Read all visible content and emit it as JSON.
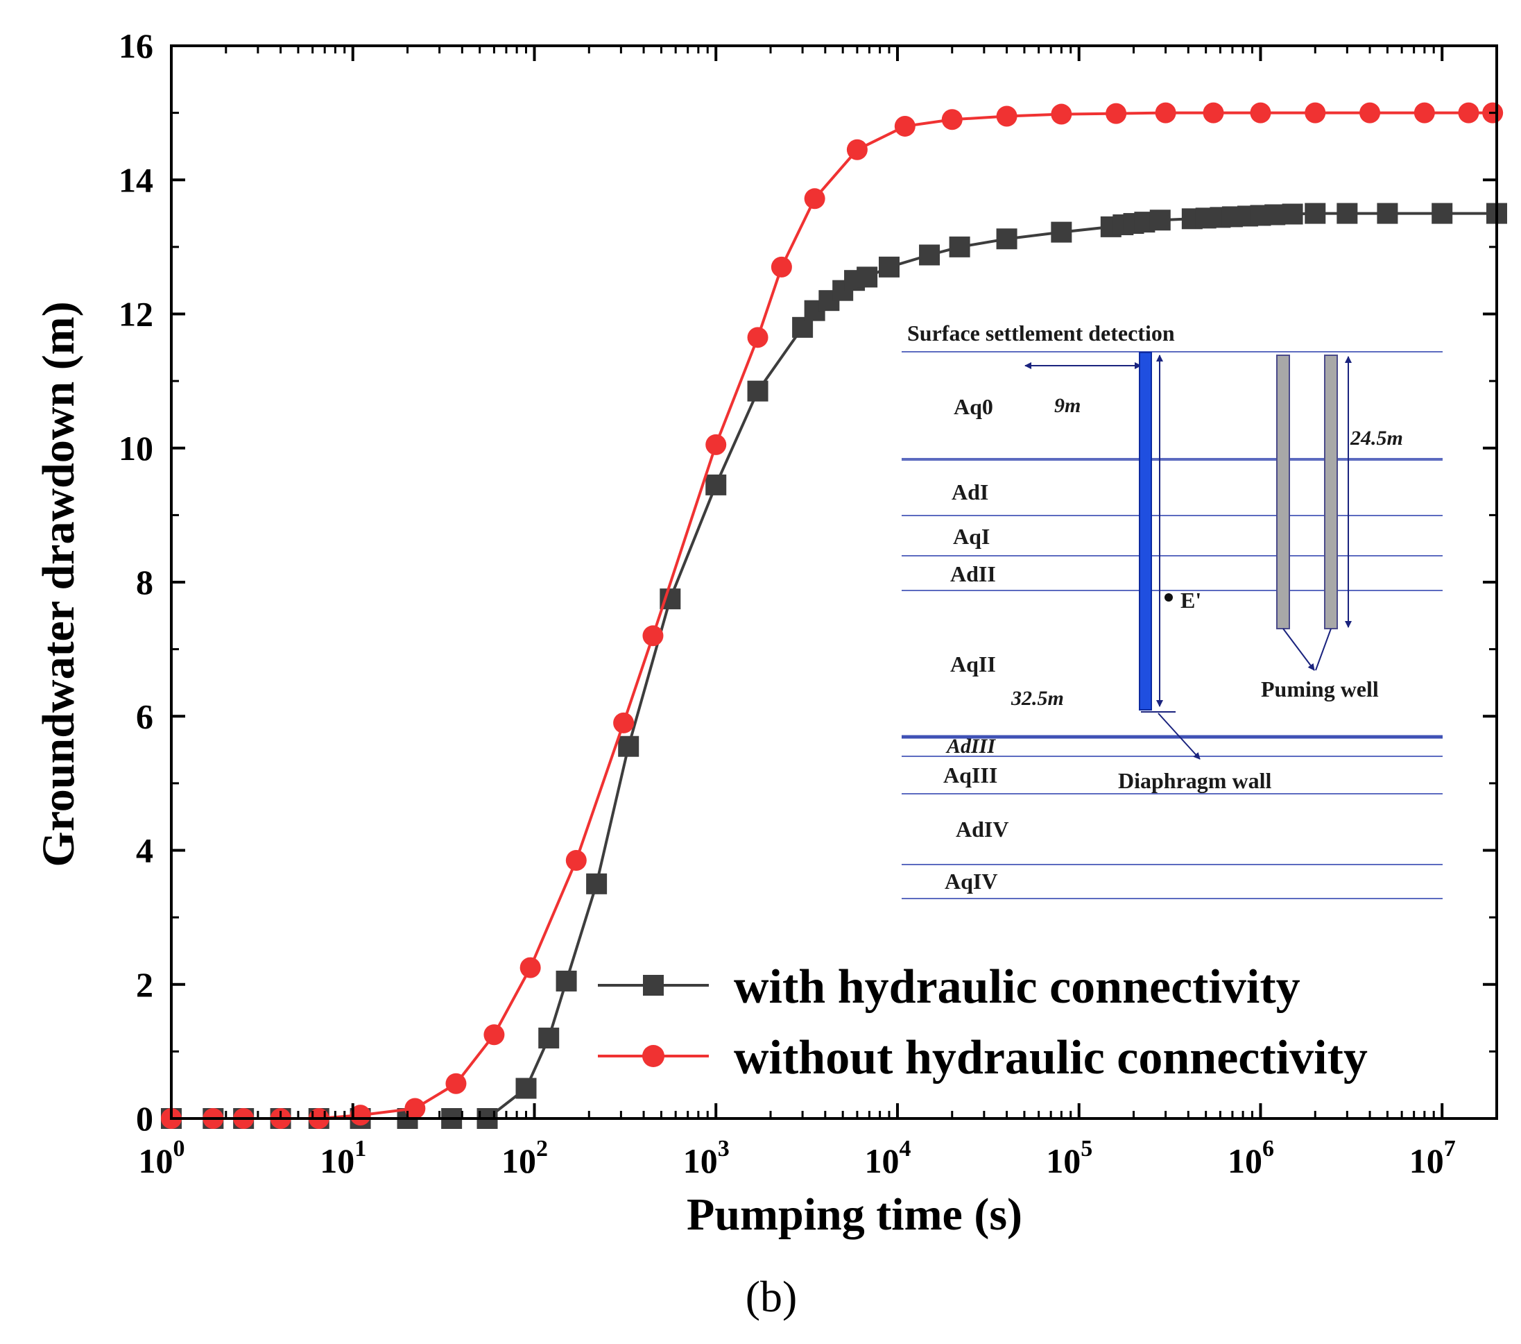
{
  "chart_data": {
    "type": "line",
    "xscale": "log",
    "xlim": [
      1,
      20000000
    ],
    "ylim": [
      0,
      16
    ],
    "xlabel": "Pumping time (s)",
    "ylabel": "Groundwater drawdown (m)",
    "x_ticks": [
      {
        "value": 1,
        "base": "10",
        "exp": "0"
      },
      {
        "value": 10,
        "base": "10",
        "exp": "1"
      },
      {
        "value": 100,
        "base": "10",
        "exp": "2"
      },
      {
        "value": 1000,
        "base": "10",
        "exp": "3"
      },
      {
        "value": 10000,
        "base": "10",
        "exp": "4"
      },
      {
        "value": 100000,
        "base": "10",
        "exp": "5"
      },
      {
        "value": 1000000,
        "base": "10",
        "exp": "6"
      },
      {
        "value": 10000000,
        "base": "10",
        "exp": "7"
      }
    ],
    "y_ticks": [
      0,
      2,
      4,
      6,
      8,
      10,
      12,
      14,
      16
    ],
    "series": [
      {
        "name": "with hydraulic connectivity",
        "color": "#3d3d3d",
        "marker": "square",
        "x": [
          1,
          1.7,
          2.5,
          4,
          6.5,
          11,
          20,
          35,
          55,
          90,
          120,
          150,
          220,
          330,
          560,
          1000,
          1700,
          3000,
          3500,
          4200,
          5000,
          5800,
          6800,
          9000,
          15000,
          22000,
          40000,
          80000,
          150000,
          175000,
          200000,
          230000,
          280000,
          420000,
          500000,
          600000,
          700000,
          850000,
          1000000,
          1200000,
          1500000,
          2000000,
          3000000,
          5000000,
          10000000,
          20000000
        ],
        "y": [
          0,
          0,
          0,
          0,
          0,
          0,
          0,
          0,
          0,
          0.45,
          1.2,
          2.05,
          3.5,
          5.55,
          7.75,
          9.45,
          10.85,
          11.8,
          12.05,
          12.2,
          12.35,
          12.5,
          12.55,
          12.7,
          12.88,
          13.0,
          13.12,
          13.22,
          13.3,
          13.33,
          13.35,
          13.37,
          13.4,
          13.42,
          13.43,
          13.44,
          13.45,
          13.46,
          13.47,
          13.48,
          13.49,
          13.5,
          13.5,
          13.5,
          13.5,
          13.5
        ]
      },
      {
        "name": "without hydraulic connectivity",
        "color": "#f03232",
        "marker": "circle",
        "x": [
          1,
          1.7,
          2.5,
          4,
          6.5,
          11,
          22,
          37,
          60,
          95,
          170,
          310,
          450,
          1000,
          1700,
          2300,
          3500,
          6000,
          11000,
          20000,
          40000,
          80000,
          160000,
          300000,
          550000,
          1000000,
          2000000,
          4000000,
          8000000,
          14000000,
          19000000
        ],
        "y": [
          0,
          0,
          0,
          0,
          0,
          0.05,
          0.15,
          0.52,
          1.25,
          2.25,
          3.85,
          5.9,
          7.2,
          10.05,
          11.65,
          12.7,
          13.72,
          14.45,
          14.8,
          14.9,
          14.95,
          14.98,
          14.99,
          15.0,
          15.0,
          15.0,
          15.0,
          15.0,
          15.0,
          15.0,
          15.0
        ]
      }
    ],
    "legend": {
      "position": "bottom-right",
      "items": [
        "with hydraulic connectivity",
        "without hydraulic connectivity"
      ]
    },
    "inset": {
      "title": "Surface settlement detection",
      "layers": [
        "Aq0",
        "AdI",
        "AqI",
        "AdII",
        "AqII",
        "AdIII",
        "AqIII",
        "AdIV",
        "AqIV"
      ],
      "dimension_9m": "9m",
      "dimension_24_5m": "24.5m",
      "dimension_32_5m": "32.5m",
      "point_label": "E'",
      "pumping_well_label": "Puming well",
      "diaphragm_wall_label": "Diaphragm wall"
    }
  },
  "caption": "(b)"
}
